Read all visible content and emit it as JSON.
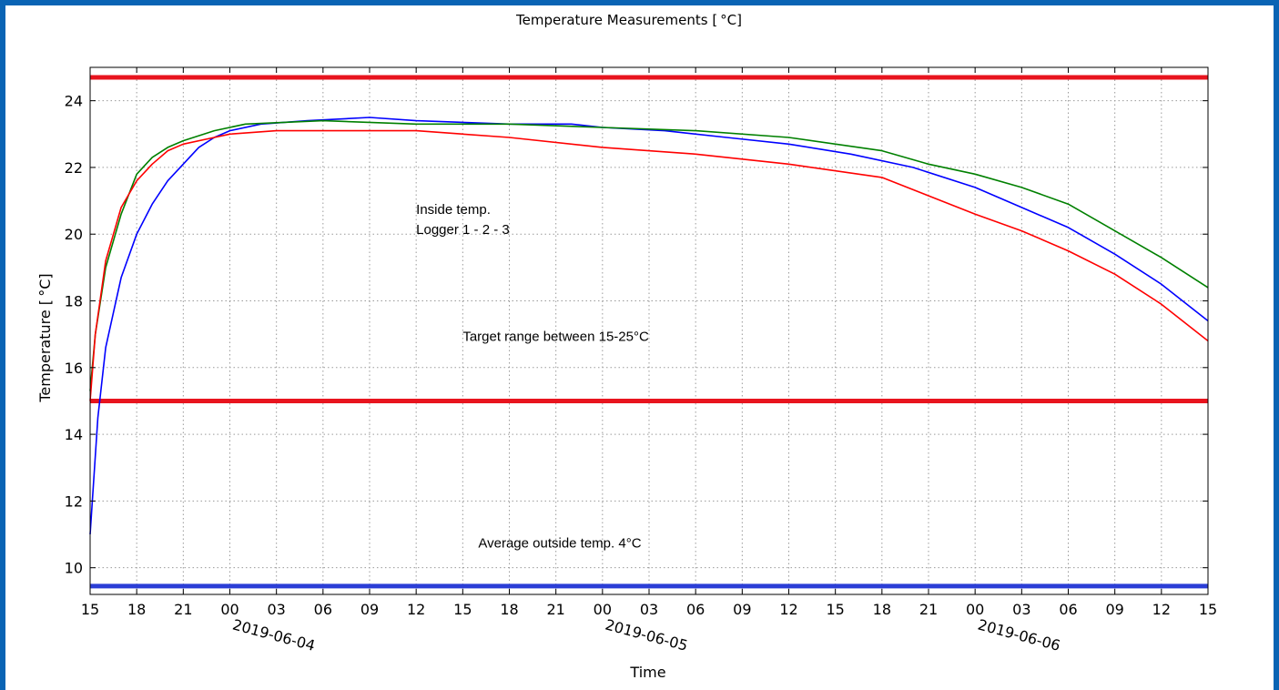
{
  "chart_data": {
    "type": "line",
    "title": "Temperature Measurements [ °C]",
    "xlabel": "Time",
    "ylabel": "Temperature [ °C]",
    "x_unit": "hour",
    "x_start": "2019-06-03 15:00",
    "xlim": [
      "2019-06-03 15:00",
      "2019-06-06 15:00"
    ],
    "ylim": [
      9.2,
      25
    ],
    "grid": true,
    "x_ticks": [
      "15",
      "18",
      "21",
      "00",
      "03",
      "06",
      "09",
      "12",
      "15",
      "18",
      "21",
      "00",
      "03",
      "06",
      "09",
      "12",
      "15",
      "18",
      "21",
      "00",
      "03",
      "06",
      "09",
      "12",
      "15"
    ],
    "date_labels": [
      {
        "text": "2019-06-04",
        "at": "2019-06-04 00:00"
      },
      {
        "text": "2019-06-05",
        "at": "2019-06-05 00:00"
      },
      {
        "text": "2019-06-06",
        "at": "2019-06-06 00:00"
      }
    ],
    "y_ticks": [
      10,
      12,
      14,
      16,
      18,
      20,
      22,
      24
    ],
    "reference_lines": [
      {
        "y": 24.7,
        "color": "#e8141e"
      },
      {
        "y": 15.0,
        "color": "#e8141e"
      },
      {
        "y": 9.45,
        "color": "#2b3ed6"
      }
    ],
    "series": [
      {
        "color": "#0000ff",
        "points": [
          [
            "2019-06-03 15:00",
            11.0
          ],
          [
            "2019-06-03 15:30",
            14.5
          ],
          [
            "2019-06-03 16:00",
            16.6
          ],
          [
            "2019-06-03 17:00",
            18.7
          ],
          [
            "2019-06-03 18:00",
            20.0
          ],
          [
            "2019-06-03 19:00",
            20.9
          ],
          [
            "2019-06-03 20:00",
            21.6
          ],
          [
            "2019-06-03 21:00",
            22.1
          ],
          [
            "2019-06-03 22:00",
            22.6
          ],
          [
            "2019-06-03 23:00",
            22.9
          ],
          [
            "2019-06-04 00:00",
            23.1
          ],
          [
            "2019-06-04 02:00",
            23.3
          ],
          [
            "2019-06-04 05:00",
            23.4
          ],
          [
            "2019-06-04 09:00",
            23.5
          ],
          [
            "2019-06-04 12:00",
            23.4
          ],
          [
            "2019-06-04 18:00",
            23.3
          ],
          [
            "2019-06-04 22:00",
            23.3
          ],
          [
            "2019-06-05 00:00",
            23.2
          ],
          [
            "2019-06-05 04:00",
            23.1
          ],
          [
            "2019-06-05 08:00",
            22.9
          ],
          [
            "2019-06-05 12:00",
            22.7
          ],
          [
            "2019-06-05 16:00",
            22.4
          ],
          [
            "2019-06-05 20:00",
            22.0
          ],
          [
            "2019-06-06 00:00",
            21.4
          ],
          [
            "2019-06-06 03:00",
            20.8
          ],
          [
            "2019-06-06 06:00",
            20.2
          ],
          [
            "2019-06-06 09:00",
            19.4
          ],
          [
            "2019-06-06 12:00",
            18.5
          ],
          [
            "2019-06-06 15:00",
            17.4
          ]
        ]
      },
      {
        "color": "#008000",
        "points": [
          [
            "2019-06-03 15:00",
            15.3
          ],
          [
            "2019-06-03 15:20",
            17.0
          ],
          [
            "2019-06-03 16:00",
            19.0
          ],
          [
            "2019-06-03 17:00",
            20.6
          ],
          [
            "2019-06-03 18:00",
            21.8
          ],
          [
            "2019-06-03 19:00",
            22.3
          ],
          [
            "2019-06-03 20:00",
            22.6
          ],
          [
            "2019-06-03 21:00",
            22.8
          ],
          [
            "2019-06-03 23:00",
            23.1
          ],
          [
            "2019-06-04 01:00",
            23.3
          ],
          [
            "2019-06-04 06:00",
            23.4
          ],
          [
            "2019-06-04 12:00",
            23.3
          ],
          [
            "2019-06-04 18:00",
            23.3
          ],
          [
            "2019-06-05 00:00",
            23.2
          ],
          [
            "2019-06-05 06:00",
            23.1
          ],
          [
            "2019-06-05 12:00",
            22.9
          ],
          [
            "2019-06-05 18:00",
            22.5
          ],
          [
            "2019-06-05 21:00",
            22.1
          ],
          [
            "2019-06-06 00:00",
            21.8
          ],
          [
            "2019-06-06 03:00",
            21.4
          ],
          [
            "2019-06-06 06:00",
            20.9
          ],
          [
            "2019-06-06 09:00",
            20.1
          ],
          [
            "2019-06-06 12:00",
            19.3
          ],
          [
            "2019-06-06 15:00",
            18.4
          ]
        ]
      },
      {
        "color": "#ff0000",
        "points": [
          [
            "2019-06-03 15:00",
            15.0
          ],
          [
            "2019-06-03 15:20",
            17.0
          ],
          [
            "2019-06-03 16:00",
            19.2
          ],
          [
            "2019-06-03 17:00",
            20.8
          ],
          [
            "2019-06-03 18:00",
            21.6
          ],
          [
            "2019-06-03 19:00",
            22.1
          ],
          [
            "2019-06-03 20:00",
            22.5
          ],
          [
            "2019-06-03 21:00",
            22.7
          ],
          [
            "2019-06-03 23:00",
            22.9
          ],
          [
            "2019-06-04 00:00",
            23.0
          ],
          [
            "2019-06-04 03:00",
            23.1
          ],
          [
            "2019-06-04 12:00",
            23.1
          ],
          [
            "2019-06-04 18:00",
            22.9
          ],
          [
            "2019-06-05 00:00",
            22.6
          ],
          [
            "2019-06-05 06:00",
            22.4
          ],
          [
            "2019-06-05 12:00",
            22.1
          ],
          [
            "2019-06-05 18:00",
            21.7
          ],
          [
            "2019-06-06 00:00",
            20.6
          ],
          [
            "2019-06-06 03:00",
            20.1
          ],
          [
            "2019-06-06 06:00",
            19.5
          ],
          [
            "2019-06-06 09:00",
            18.8
          ],
          [
            "2019-06-06 12:00",
            17.9
          ],
          [
            "2019-06-06 15:00",
            16.8
          ]
        ]
      }
    ],
    "annotations": [
      {
        "text": "Inside temp.",
        "x": "2019-06-04 12:00",
        "y": 20.6
      },
      {
        "text": "Logger 1 - 2 - 3",
        "x": "2019-06-04 12:00",
        "y": 20.0
      },
      {
        "text": "Target range between 15-25°C",
        "x": "2019-06-04 15:00",
        "y": 16.8
      },
      {
        "text": "Average outside temp. 4°C",
        "x": "2019-06-04 16:00",
        "y": 10.6
      }
    ]
  }
}
